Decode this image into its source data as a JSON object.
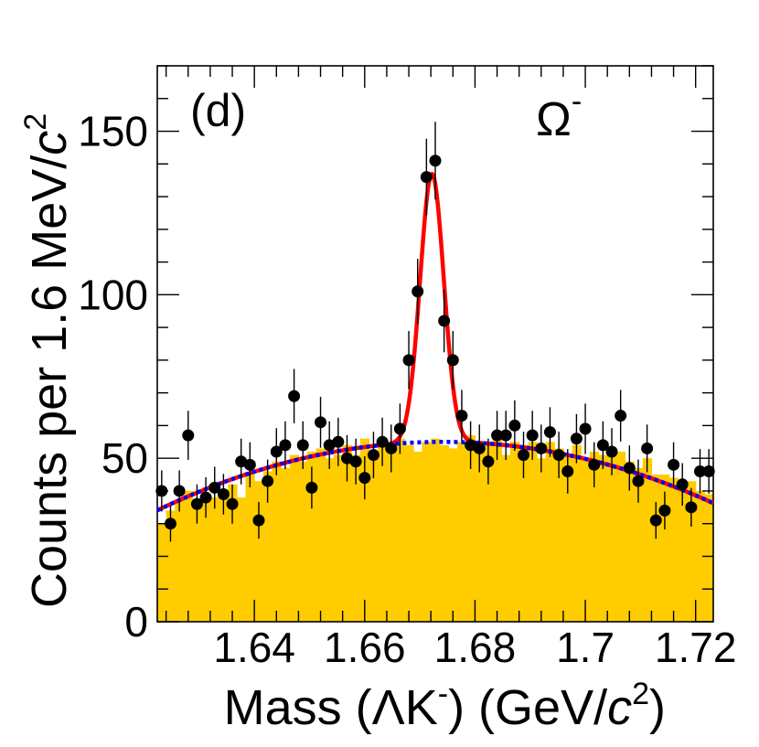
{
  "chart_data": {
    "type": "scatter",
    "panel_label": "(d)",
    "particle_label": {
      "base": "Ω",
      "sup": "-"
    },
    "xlabel": {
      "prefix": "Mass (",
      "lambda": "Λ",
      "k": "K",
      "k_sup": "-",
      "mid": ") (GeV/",
      "c": "c",
      "c_sup": "2",
      "suffix": ")"
    },
    "ylabel": {
      "prefix": "Counts per 1.6 MeV/",
      "c": "c",
      "c_sup": "2"
    },
    "xlim": [
      1.6224,
      1.7232
    ],
    "ylim": [
      0,
      170
    ],
    "x_ticks": [
      1.64,
      1.66,
      1.68,
      1.7,
      1.72
    ],
    "x_tick_labels": [
      "1.64",
      "1.66",
      "1.68",
      "1.7",
      "1.72"
    ],
    "y_ticks": [
      0,
      50,
      100,
      150
    ],
    "y_tick_labels": [
      "0",
      "50",
      "100",
      "150"
    ],
    "bin_width": 0.0016,
    "data_points": {
      "x": [
        1.6232,
        1.6248,
        1.6264,
        1.628,
        1.6296,
        1.6312,
        1.6328,
        1.6344,
        1.636,
        1.6376,
        1.6392,
        1.6408,
        1.6424,
        1.644,
        1.6456,
        1.6472,
        1.6488,
        1.6504,
        1.652,
        1.6536,
        1.6552,
        1.6568,
        1.6584,
        1.66,
        1.6616,
        1.6632,
        1.6648,
        1.6664,
        1.668,
        1.6696,
        1.6712,
        1.6728,
        1.6744,
        1.676,
        1.6776,
        1.6792,
        1.6808,
        1.6824,
        1.684,
        1.6856,
        1.6872,
        1.6888,
        1.6904,
        1.692,
        1.6936,
        1.6952,
        1.6968,
        1.6984,
        1.7,
        1.7016,
        1.7032,
        1.7048,
        1.7064,
        1.708,
        1.7096,
        1.7112,
        1.7128,
        1.7144,
        1.716,
        1.7176,
        1.7192,
        1.7208,
        1.7224
      ],
      "y": [
        40,
        30,
        40,
        57,
        36,
        38,
        41,
        39,
        36,
        49,
        48,
        31,
        43,
        52,
        54,
        69,
        54,
        41,
        61,
        54,
        55,
        50,
        49,
        44,
        51,
        55,
        53,
        59,
        80,
        101,
        136,
        141,
        92,
        80,
        63,
        54,
        53,
        49,
        57,
        57,
        60,
        51,
        57,
        53,
        58,
        51,
        46,
        56,
        59,
        48,
        54,
        52,
        63,
        47,
        43,
        53,
        31,
        34,
        48,
        42,
        35,
        46,
        46
      ],
      "err": [
        6.3,
        5.5,
        6.3,
        7.5,
        6,
        6.2,
        6.4,
        6.2,
        6,
        7,
        6.9,
        5.6,
        6.6,
        7.2,
        7.3,
        8.3,
        7.3,
        6.4,
        7.8,
        7.3,
        7.4,
        7.1,
        7,
        6.6,
        7.1,
        7.4,
        7.3,
        7.7,
        8.9,
        10,
        11.7,
        11.9,
        9.6,
        8.9,
        7.9,
        7.3,
        7.3,
        7,
        7.5,
        7.5,
        7.7,
        7.1,
        7.5,
        7.3,
        7.6,
        7.1,
        6.8,
        7.5,
        7.7,
        6.9,
        7.3,
        7.2,
        7.9,
        6.9,
        6.6,
        7.3,
        5.6,
        5.8,
        6.9,
        6.5,
        5.9,
        6.8,
        6.8
      ]
    },
    "background_histogram": {
      "x_start": 1.6224,
      "values": [
        30,
        34,
        37,
        40,
        35,
        38,
        38,
        40,
        42,
        38,
        45,
        43,
        46,
        49,
        47,
        51,
        49,
        52,
        53,
        50,
        51,
        54,
        51,
        56,
        52,
        55,
        53,
        56,
        54,
        52,
        55,
        56,
        54,
        53,
        55,
        57,
        54,
        55,
        56,
        51,
        55,
        54,
        55,
        50,
        55,
        53,
        51,
        54,
        50,
        52,
        51,
        52,
        52,
        49,
        47,
        50,
        45,
        45,
        44,
        42,
        43,
        40,
        39
      ]
    },
    "fit_signal_plus_background": {
      "mean": 1.6722,
      "sigma": 0.00215,
      "amplitude": 82
    },
    "fit_background_quadratic": {
      "peak_x": 1.6742,
      "peak_y": 55,
      "curvature": 7800
    },
    "colors": {
      "histogram_fill": "#FFCC00",
      "fit_total": "#FF0000",
      "fit_background": "#0000FF",
      "points": "#000000"
    }
  }
}
